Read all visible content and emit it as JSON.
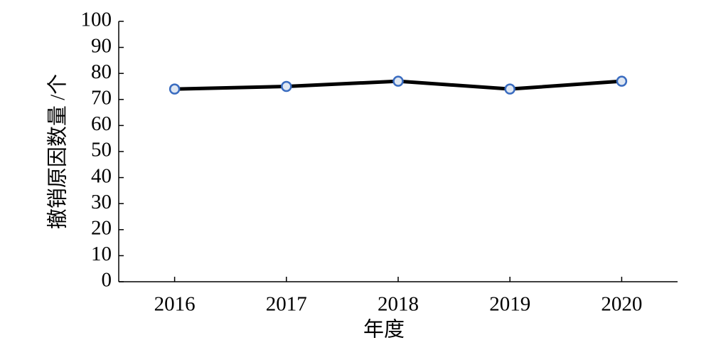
{
  "chart_data": {
    "type": "line",
    "categories": [
      "2016",
      "2017",
      "2018",
      "2019",
      "2020"
    ],
    "series": [
      {
        "name": "撤销原因数量",
        "color": "#000000",
        "values": [
          74,
          75,
          77,
          74,
          77
        ]
      }
    ],
    "xlabel": "年度",
    "ylabel": "撤销原因数量 /个",
    "ylim": [
      0,
      100
    ],
    "yticks": [
      0,
      10,
      20,
      30,
      40,
      50,
      60,
      70,
      80,
      90,
      100
    ],
    "marker_fill": "#dfe7f2",
    "marker_edge": "#3a6cc0"
  }
}
